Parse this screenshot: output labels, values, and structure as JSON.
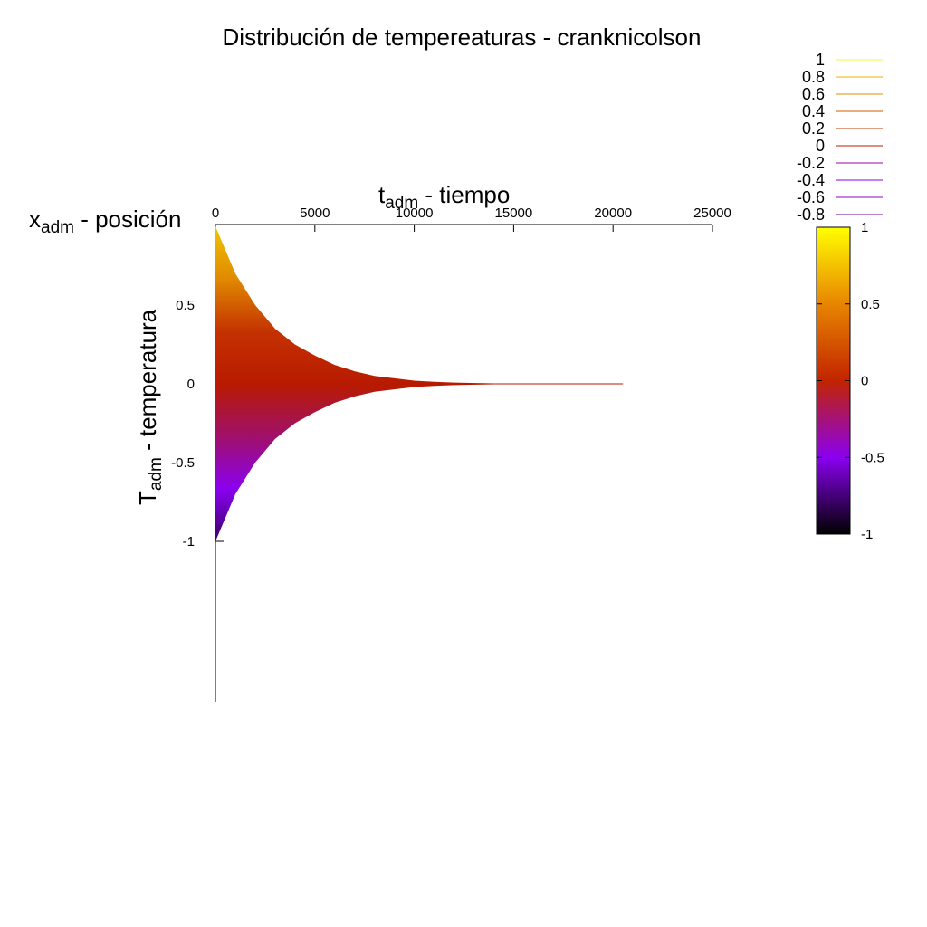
{
  "chart_data": {
    "type": "area",
    "title": "Distribución de tempereaturas - cranknicolson",
    "xlabel": {
      "main": "t",
      "sub": "adm",
      "rest": " - tiempo"
    },
    "ylabel": {
      "main": "T",
      "sub": "adm",
      "rest": " - temperatura"
    },
    "zlabel": {
      "main": "x",
      "sub": "adm",
      "rest": " - posición"
    },
    "x_ticks": [
      "0",
      "5000",
      "10000",
      "15000",
      "20000",
      "25000"
    ],
    "y_ticks": [
      "0.5",
      "0",
      "-0.5",
      "-1"
    ],
    "xlim": [
      0,
      25000
    ],
    "ylim": [
      -1,
      1
    ],
    "grid": false,
    "legend_placement": "top-right",
    "contour_levels": [
      {
        "label": "1",
        "value": 1,
        "color": "#f3f542"
      },
      {
        "label": "0.8",
        "value": 0.8,
        "color": "#e9b300"
      },
      {
        "label": "0.6",
        "value": 0.6,
        "color": "#de9100"
      },
      {
        "label": "0.4",
        "value": 0.4,
        "color": "#d05d00"
      },
      {
        "label": "0.2",
        "value": 0.2,
        "color": "#c53a00"
      },
      {
        "label": "0",
        "value": 0,
        "color": "#b81a00"
      },
      {
        "label": "-0.2",
        "value": -0.2,
        "color": "#9b00ac"
      },
      {
        "label": "-0.4",
        "value": -0.4,
        "color": "#8f00e8"
      },
      {
        "label": "-0.6",
        "value": -0.6,
        "color": "#8a00cc"
      },
      {
        "label": "-0.8",
        "value": -0.8,
        "color": "#6a0098"
      }
    ],
    "colorbar": {
      "ticks": [
        "1",
        "0.5",
        "0",
        "-0.5",
        "-1"
      ],
      "range": [
        -1,
        1
      ],
      "colors": [
        "#ffff00",
        "#e88500",
        "#c22400",
        "#8a00f0",
        "#000000"
      ]
    },
    "series": [
      {
        "t": [
          0,
          1000,
          2000,
          3000,
          4000,
          5000,
          6000,
          7000,
          8000,
          9000,
          10000,
          11000,
          12000,
          14000,
          20500
        ],
        "upper": [
          1.0,
          0.7,
          0.5,
          0.35,
          0.25,
          0.18,
          0.12,
          0.08,
          0.05,
          0.035,
          0.02,
          0.013,
          0.008,
          0.003,
          0.0
        ],
        "lower": [
          -1.0,
          -0.7,
          -0.5,
          -0.35,
          -0.25,
          -0.18,
          -0.12,
          -0.08,
          -0.05,
          -0.035,
          -0.02,
          -0.013,
          -0.008,
          -0.003,
          0.0
        ]
      }
    ]
  }
}
